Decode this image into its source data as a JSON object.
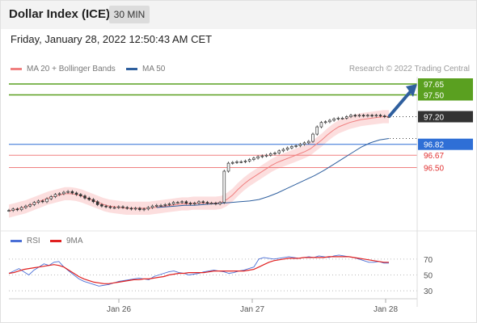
{
  "header": {
    "title": "Dollar Index (ICE)",
    "timeframe": "30 MIN"
  },
  "timestamp": "Friday, January 28, 2022 12:50:43 AM CET",
  "legend_top": [
    {
      "label": "MA 20 + Bollinger Bands",
      "color": "#f08080"
    },
    {
      "label": "MA 50",
      "color": "#2e5f9e"
    }
  ],
  "credit": "Research © 2022 Trading Central",
  "legend_bottom": [
    {
      "label": "RSI",
      "color": "#4a6fd6"
    },
    {
      "label": "9MA",
      "color": "#e02020"
    }
  ],
  "colors": {
    "resistance": "#5aa020",
    "last_price": "#333333",
    "pivot": "#2f6fd6",
    "support": "#f08080",
    "support_text": "#e03030",
    "arrow": "#2f5f9e"
  },
  "chart_data": [
    {
      "type": "line",
      "title": "Dollar Index (ICE)",
      "x_ticks": [
        "Jan 26",
        "Jan 27",
        "Jan 28"
      ],
      "ylim": [
        95.75,
        97.75
      ],
      "levels": [
        {
          "label": "97.65",
          "value": 97.65,
          "kind": "resistance"
        },
        {
          "label": "97.50",
          "value": 97.5,
          "kind": "resistance"
        },
        {
          "label": "97.20",
          "value": 97.2,
          "kind": "last_price"
        },
        {
          "label": "96.82",
          "value": 96.82,
          "kind": "pivot"
        },
        {
          "label": "96.67",
          "value": 96.67,
          "kind": "support"
        },
        {
          "label": "96.50",
          "value": 96.5,
          "kind": "support"
        }
      ],
      "price": [
        95.91,
        95.93,
        95.92,
        95.95,
        95.97,
        95.99,
        96.02,
        96.04,
        96.03,
        96.07,
        96.1,
        96.13,
        96.14,
        96.16,
        96.17,
        96.15,
        96.13,
        96.11,
        96.08,
        96.06,
        96.03,
        95.99,
        95.97,
        95.96,
        95.95,
        95.95,
        95.96,
        95.95,
        95.94,
        95.93,
        95.94,
        95.92,
        95.93,
        95.95,
        95.97,
        95.98,
        95.98,
        95.99,
        96.0,
        96.02,
        96.02,
        96.03,
        96.01,
        96.0,
        96.01,
        96.03,
        96.02,
        96.01,
        96.01,
        96.0,
        96.02,
        96.45,
        96.56,
        96.57,
        96.58,
        96.58,
        96.59,
        96.61,
        96.63,
        96.65,
        96.66,
        96.67,
        96.69,
        96.7,
        96.73,
        96.75,
        96.77,
        96.79,
        96.8,
        96.82,
        96.84,
        96.86,
        96.96,
        97.06,
        97.12,
        97.13,
        97.15,
        97.17,
        97.18,
        97.18,
        97.2,
        97.22,
        97.21,
        97.22,
        97.21,
        97.22,
        97.21,
        97.22,
        97.21,
        97.2,
        97.2
      ],
      "ma20": [
        95.9,
        95.92,
        95.94,
        95.96,
        95.99,
        96.02,
        96.05,
        96.08,
        96.1,
        96.12,
        96.14,
        96.14,
        96.13,
        96.11,
        96.08,
        96.05,
        96.02,
        95.99,
        95.97,
        95.96,
        95.95,
        95.94,
        95.94,
        95.94,
        95.94,
        95.94,
        95.95,
        95.96,
        95.97,
        95.98,
        95.99,
        96.0,
        96.0,
        96.01,
        96.01,
        96.01,
        96.01,
        96.01,
        96.02,
        96.06,
        96.12,
        96.2,
        96.27,
        96.33,
        96.38,
        96.43,
        96.48,
        96.53,
        96.57,
        96.6,
        96.63,
        96.66,
        96.69,
        96.72,
        96.76,
        96.82,
        96.88,
        96.95,
        97.01,
        97.06,
        97.09,
        97.12,
        97.14,
        97.16,
        97.17,
        97.18,
        97.19,
        97.2,
        97.2
      ],
      "ma20_x_start": 0,
      "ma50": [
        95.95,
        95.96,
        95.97,
        95.98,
        95.98,
        95.99,
        96.0,
        96.01,
        96.02,
        96.03,
        96.04,
        96.06,
        96.1,
        96.15,
        96.21,
        96.27,
        96.33,
        96.39,
        96.46,
        96.54,
        96.62,
        96.7,
        96.78,
        96.84,
        96.88,
        96.9
      ],
      "ma50_x_start": 35,
      "band_half_width": 0.09
    },
    {
      "type": "line",
      "title": "RSI",
      "y_ticks": [
        70,
        50,
        30
      ],
      "ylim": [
        20,
        80
      ],
      "series": [
        {
          "name": "RSI",
          "values": [
            52,
            55,
            58,
            54,
            50,
            56,
            60,
            64,
            62,
            66,
            67,
            60,
            55,
            50,
            45,
            42,
            40,
            38,
            36,
            37,
            38,
            40,
            42,
            43,
            44,
            45,
            46,
            45,
            44,
            48,
            50,
            52,
            54,
            55,
            53,
            52,
            50,
            51,
            52,
            54,
            55,
            56,
            55,
            54,
            52,
            53,
            55,
            56,
            58,
            60,
            70,
            72,
            71,
            70,
            71,
            72,
            73,
            72,
            71,
            72,
            73,
            72,
            74,
            73,
            72,
            74,
            75,
            74,
            73,
            72,
            70,
            68,
            66,
            66,
            67,
            65,
            65
          ]
        },
        {
          "name": "9MA",
          "values": [
            52,
            53,
            55,
            57,
            58,
            59,
            60,
            61,
            62,
            63,
            62,
            60,
            56,
            52,
            48,
            45,
            43,
            41,
            40,
            39,
            39,
            40,
            41,
            42,
            43,
            44,
            44,
            45,
            45,
            46,
            47,
            48,
            50,
            51,
            52,
            52,
            53,
            53,
            53,
            53,
            54,
            55,
            55,
            55,
            55,
            55,
            55,
            55,
            56,
            57,
            60,
            63,
            66,
            68,
            69,
            70,
            71,
            71,
            71,
            72,
            72,
            72,
            72,
            72,
            73,
            73,
            73,
            73,
            73,
            72,
            71,
            70,
            69,
            68,
            67,
            66,
            66
          ]
        }
      ]
    }
  ]
}
